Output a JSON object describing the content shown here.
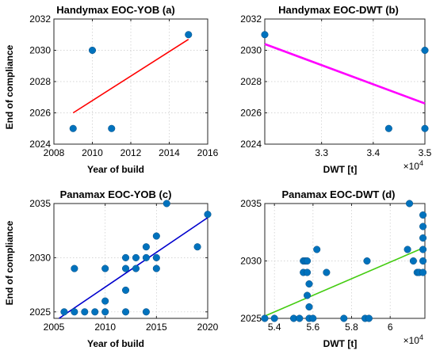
{
  "figure": {
    "panels": [
      {
        "id": "a",
        "title": "Handymax EOC-YOB (a)"
      },
      {
        "id": "b",
        "title": "Handymax EOC-DWT (b)"
      },
      {
        "id": "c",
        "title": "Panamax EOC-YOB (c)"
      },
      {
        "id": "d",
        "title": "Panamax EOC-DWT (d)"
      }
    ]
  },
  "chart_data": [
    {
      "type": "scatter",
      "title": "Handymax EOC-YOB (a)",
      "xlabel": "Year of build",
      "ylabel": "End of compliance",
      "xlim": [
        2008,
        2016
      ],
      "ylim": [
        2024,
        2032
      ],
      "xticks": [
        2008,
        2010,
        2012,
        2014,
        2016
      ],
      "yticks": [
        2024,
        2026,
        2028,
        2030,
        2032
      ],
      "grid": true,
      "points": [
        [
          2009,
          2025
        ],
        [
          2010,
          2030
        ],
        [
          2011,
          2025
        ],
        [
          2015,
          2031
        ]
      ],
      "fit_line": {
        "x": [
          2009,
          2015
        ],
        "y": [
          2026.0,
          2030.7
        ],
        "color": "#ff0000"
      },
      "marker_color": "#0072bd"
    },
    {
      "type": "scatter",
      "title": "Handymax EOC-DWT (b)",
      "xlabel": "DWT [t]",
      "ylabel": "",
      "xlim": [
        31900,
        35000
      ],
      "ylim": [
        2024,
        2032
      ],
      "xticks": [
        33000,
        34000,
        35000
      ],
      "xtick_labels": [
        "3.3",
        "3.4",
        "3.5"
      ],
      "yticks": [
        2024,
        2026,
        2028,
        2030,
        2032
      ],
      "x_exponent": "×10^4",
      "grid": true,
      "points": [
        [
          31900,
          2031
        ],
        [
          34300,
          2025
        ],
        [
          35000,
          2025
        ],
        [
          35000,
          2030
        ]
      ],
      "fit_line": {
        "x": [
          31900,
          35000
        ],
        "y": [
          2030.4,
          2026.6
        ],
        "color": "#ff00ff"
      },
      "marker_color": "#0072bd"
    },
    {
      "type": "scatter",
      "title": "Panamax EOC-YOB (c)",
      "xlabel": "Year of build",
      "ylabel": "End of compliance",
      "xlim": [
        2005,
        2020
      ],
      "ylim": [
        2024.4,
        2035
      ],
      "xticks": [
        2005,
        2010,
        2015,
        2020
      ],
      "yticks": [
        2025,
        2030,
        2035
      ],
      "grid": true,
      "points": [
        [
          2006,
          2025
        ],
        [
          2007,
          2025
        ],
        [
          2007,
          2029
        ],
        [
          2008,
          2025
        ],
        [
          2009,
          2025
        ],
        [
          2010,
          2025
        ],
        [
          2010,
          2026
        ],
        [
          2010,
          2029
        ],
        [
          2012,
          2025
        ],
        [
          2012,
          2027
        ],
        [
          2012,
          2029
        ],
        [
          2012,
          2030
        ],
        [
          2013,
          2029
        ],
        [
          2013,
          2030
        ],
        [
          2014,
          2025
        ],
        [
          2014,
          2030
        ],
        [
          2014,
          2031
        ],
        [
          2015,
          2029
        ],
        [
          2015,
          2030
        ],
        [
          2015,
          2032
        ],
        [
          2016,
          2035
        ],
        [
          2019,
          2031
        ],
        [
          2020,
          2034
        ]
      ],
      "fit_line": {
        "x": [
          2005.5,
          2020
        ],
        "y": [
          2024.4,
          2033.7
        ],
        "color": "#0000cd"
      },
      "marker_color": "#0072bd"
    },
    {
      "type": "scatter",
      "title": "Panamax EOC-DWT (d)",
      "xlabel": "DWT [t]",
      "ylabel": "",
      "xlim": [
        53500,
        61800
      ],
      "ylim": [
        2025,
        2035
      ],
      "xticks": [
        54000,
        56000,
        58000,
        60000
      ],
      "xtick_labels": [
        "5.4",
        "5.6",
        "5.8",
        "6"
      ],
      "yticks": [
        2025,
        2030,
        2035
      ],
      "x_exponent": "×10^4",
      "grid": true,
      "points": [
        [
          53500,
          2025
        ],
        [
          54000,
          2025
        ],
        [
          55000,
          2025
        ],
        [
          55300,
          2025
        ],
        [
          55500,
          2029
        ],
        [
          55500,
          2030
        ],
        [
          55600,
          2030
        ],
        [
          55700,
          2027
        ],
        [
          55700,
          2029
        ],
        [
          55700,
          2030
        ],
        [
          55800,
          2025
        ],
        [
          55800,
          2026
        ],
        [
          55800,
          2028
        ],
        [
          56000,
          2025
        ],
        [
          56200,
          2031
        ],
        [
          56700,
          2029
        ],
        [
          57600,
          2025
        ],
        [
          58700,
          2025
        ],
        [
          58800,
          2030
        ],
        [
          58900,
          2025
        ],
        [
          60900,
          2031
        ],
        [
          61000,
          2035
        ],
        [
          61200,
          2030
        ],
        [
          61400,
          2029
        ],
        [
          61500,
          2029
        ],
        [
          61700,
          2029
        ],
        [
          61700,
          2030
        ],
        [
          61700,
          2031
        ],
        [
          61700,
          2032
        ],
        [
          61700,
          2033
        ],
        [
          61700,
          2034
        ]
      ],
      "fit_line": {
        "x": [
          53500,
          61800
        ],
        "y": [
          2025.2,
          2031.2
        ],
        "color": "#44cc11"
      },
      "marker_color": "#0072bd"
    }
  ]
}
